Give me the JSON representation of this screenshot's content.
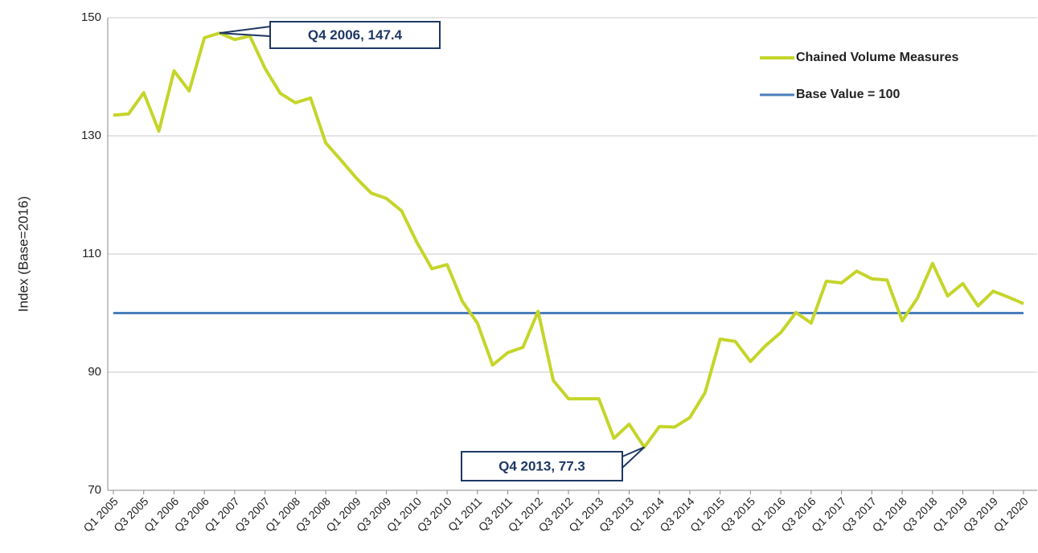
{
  "chart_data": {
    "type": "line",
    "y_label": "Index (Base=2016)",
    "categories": [
      "Q1 2005",
      null,
      "Q3 2005",
      null,
      "Q1 2006",
      null,
      "Q3 2006",
      null,
      "Q1 2007",
      null,
      "Q3 2007",
      null,
      "Q1 2008",
      null,
      "Q3 2008",
      null,
      "Q1 2009",
      null,
      "Q3 2009",
      null,
      "Q1 2010",
      null,
      "Q3 2010",
      null,
      "Q1 2011",
      null,
      "Q3 2011",
      null,
      "Q1 2012",
      null,
      "Q3 2012",
      null,
      "Q1 2013",
      null,
      "Q3 2013",
      null,
      "Q1 2014",
      null,
      "Q3 2014",
      null,
      "Q1 2015",
      null,
      "Q3 2015",
      null,
      "Q1 2016",
      null,
      "Q3 2016",
      null,
      "Q1 2017",
      null,
      "Q3 2017",
      null,
      "Q1 2018",
      null,
      "Q3 2018",
      null,
      "Q1 2019",
      null,
      "Q3 2019",
      null,
      "Q1 2020"
    ],
    "series": [
      {
        "name": "Chained Volume Measures",
        "color": "#c5d52a",
        "values": [
          133.5,
          133.7,
          137.3,
          130.8,
          141.0,
          137.6,
          146.6,
          147.4,
          146.3,
          146.9,
          141.4,
          137.2,
          135.6,
          136.4,
          128.8,
          125.9,
          122.9,
          120.3,
          119.4,
          117.3,
          112.0,
          107.5,
          108.2,
          102.0,
          98.3,
          91.2,
          93.3,
          94.2,
          100.3,
          88.6,
          85.5,
          85.5,
          85.5,
          78.8,
          81.2,
          77.3,
          80.8,
          80.7,
          82.3,
          86.5,
          95.6,
          95.2,
          91.8,
          94.5,
          96.7,
          100.1,
          98.3,
          105.4,
          105.1,
          107.1,
          105.8,
          105.6,
          98.7,
          102.5,
          108.4,
          102.9,
          105.0,
          101.2,
          103.7,
          102.7,
          101.6
        ]
      },
      {
        "name": "Base Value = 100",
        "color": "#4a7ebb",
        "values": [
          100,
          100,
          100,
          100,
          100,
          100,
          100,
          100,
          100,
          100,
          100,
          100,
          100,
          100,
          100,
          100,
          100,
          100,
          100,
          100,
          100,
          100,
          100,
          100,
          100,
          100,
          100,
          100,
          100,
          100,
          100,
          100,
          100,
          100,
          100,
          100,
          100,
          100,
          100,
          100,
          100,
          100,
          100,
          100,
          100,
          100,
          100,
          100,
          100,
          100,
          100,
          100,
          100,
          100,
          100,
          100,
          100,
          100,
          100,
          100,
          100
        ]
      }
    ],
    "annotations": [
      "Q4 2006, 147.4",
      "Q4 2013, 77.3"
    ],
    "ylim": [
      70,
      150
    ],
    "yticks": [
      70,
      90,
      110,
      130,
      150
    ],
    "grid": true,
    "legend": "upper right"
  }
}
